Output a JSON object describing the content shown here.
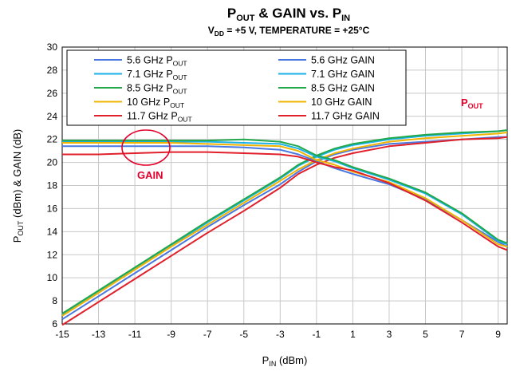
{
  "chart_data": {
    "type": "line",
    "title": {
      "main": "P",
      "main_sub": "OUT",
      "mid": " & GAIN vs. P",
      "mid_sub": "IN"
    },
    "subtitle": {
      "a": "V",
      "a_sub": "DD",
      "b": " = +5 V, TEMPERATURE = +25°C"
    },
    "xlabel": {
      "main": "P",
      "sub": "IN",
      "rest": " (dBm)"
    },
    "ylabel": {
      "a": "P",
      "a_sub": "OUT",
      "b": " (dBm) & GAIN (dB)"
    },
    "xlim": [
      -15,
      9.5
    ],
    "ylim": [
      6,
      30
    ],
    "xticks": [
      -15,
      -13,
      -11,
      -9,
      -7,
      -5,
      -3,
      -1,
      1,
      3,
      5,
      7,
      9
    ],
    "yticks": [
      6,
      8,
      10,
      12,
      14,
      16,
      18,
      20,
      22,
      24,
      26,
      28,
      30
    ],
    "xtick_labels": [
      "-15",
      "-13",
      "-11",
      "-9",
      "-7",
      "-5",
      "-3",
      "-1",
      "1",
      "3",
      "5",
      "7",
      "9"
    ],
    "ytick_labels": [
      "6",
      "8",
      "10",
      "12",
      "14",
      "16",
      "18",
      "20",
      "22",
      "24",
      "26",
      "28",
      "30"
    ],
    "grid": true,
    "legend": "top-left, inside plot, two columns",
    "x": [
      -15,
      -13,
      -11,
      -9,
      -7,
      -5,
      -3,
      -2,
      -1,
      0,
      1,
      3,
      5,
      7,
      9,
      9.5
    ],
    "series": [
      {
        "name": "5.6 GHz POUT",
        "label": "5.6 GHz P",
        "sub": "OUT",
        "color": "#4a78e0",
        "values": [
          6.4,
          8.4,
          10.4,
          12.4,
          14.4,
          16.3,
          18.1,
          19.2,
          20.1,
          20.7,
          21.1,
          21.6,
          21.8,
          22.0,
          22.2,
          22.2
        ]
      },
      {
        "name": "7.1 GHz POUT",
        "label": "7.1 GHz P",
        "sub": "OUT",
        "color": "#1ab2e8",
        "values": [
          6.8,
          8.8,
          10.8,
          12.8,
          14.8,
          16.7,
          18.6,
          19.7,
          20.5,
          21.1,
          21.5,
          22.0,
          22.3,
          22.5,
          22.7,
          22.8
        ]
      },
      {
        "name": "8.5 GHz POUT",
        "label": "8.5 GHz P",
        "sub": "OUT",
        "color": "#22a84a",
        "values": [
          6.9,
          8.9,
          10.9,
          12.9,
          14.9,
          16.8,
          18.7,
          19.8,
          20.6,
          21.2,
          21.6,
          22.1,
          22.4,
          22.6,
          22.7,
          22.8
        ]
      },
      {
        "name": "10 GHz POUT",
        "label": "10 GHz P",
        "sub": "OUT",
        "color": "#f0b400",
        "values": [
          6.7,
          8.7,
          10.7,
          12.7,
          14.6,
          16.5,
          18.4,
          19.4,
          20.2,
          20.8,
          21.2,
          21.8,
          22.1,
          22.3,
          22.5,
          22.6
        ]
      },
      {
        "name": "11.7 GHz POUT",
        "label": "11.7 GHz P",
        "sub": "OUT",
        "color": "#e0202a",
        "values": [
          5.9,
          7.9,
          9.9,
          11.9,
          13.9,
          15.8,
          17.8,
          19.0,
          19.8,
          20.4,
          20.8,
          21.4,
          21.7,
          22.0,
          22.1,
          22.2
        ]
      },
      {
        "name": "5.6 GHz GAIN",
        "label": "5.6 GHz GAIN",
        "sub": "",
        "color": "#4a78e0",
        "values": [
          21.4,
          21.4,
          21.4,
          21.4,
          21.4,
          21.3,
          21.1,
          20.7,
          20.1,
          19.5,
          19.0,
          18.1,
          16.8,
          15.0,
          13.1,
          12.7
        ]
      },
      {
        "name": "7.1 GHz GAIN",
        "label": "7.1 GHz GAIN",
        "sub": "",
        "color": "#1ab2e8",
        "values": [
          21.8,
          21.8,
          21.8,
          21.8,
          21.8,
          21.7,
          21.6,
          21.2,
          20.5,
          20.1,
          19.5,
          18.5,
          17.3,
          15.5,
          13.2,
          12.9
        ]
      },
      {
        "name": "8.5 GHz GAIN",
        "label": "8.5 GHz GAIN",
        "sub": "",
        "color": "#22a84a",
        "values": [
          21.9,
          21.9,
          21.9,
          21.9,
          21.9,
          22.0,
          21.8,
          21.4,
          20.6,
          20.2,
          19.6,
          18.6,
          17.4,
          15.6,
          13.3,
          13.0
        ]
      },
      {
        "name": "10 GHz GAIN",
        "label": "10 GHz GAIN",
        "sub": "",
        "color": "#f0b400",
        "values": [
          21.7,
          21.7,
          21.7,
          21.7,
          21.6,
          21.5,
          21.4,
          21.0,
          20.2,
          19.8,
          19.2,
          18.3,
          16.9,
          15.0,
          12.9,
          12.7
        ]
      },
      {
        "name": "11.7 GHz GAIN",
        "label": "11.7 GHz GAIN",
        "sub": "",
        "color": "#e0202a",
        "values": [
          20.7,
          20.7,
          20.8,
          20.9,
          20.9,
          20.8,
          20.7,
          20.5,
          20.0,
          19.6,
          19.3,
          18.2,
          16.7,
          14.8,
          12.7,
          12.4
        ]
      }
    ],
    "annotations": [
      {
        "text": "P",
        "sub": "OUT",
        "color": "#e4002b"
      },
      {
        "text": "GAIN",
        "sub": "",
        "color": "#e4002b"
      }
    ]
  }
}
